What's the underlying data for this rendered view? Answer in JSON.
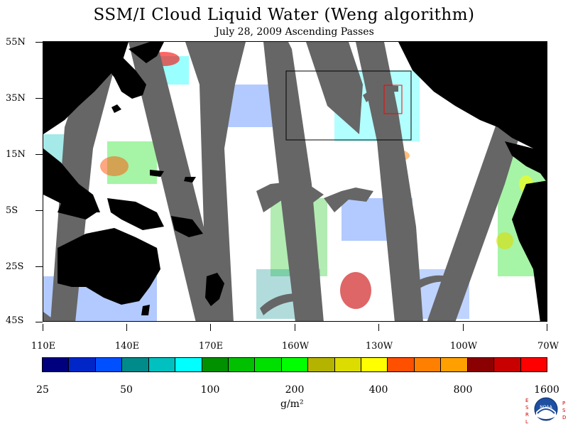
{
  "title": "SSM/I Cloud Liquid Water (Weng algorithm)",
  "subtitle": "July 28, 2009  Ascending Passes",
  "lat_labels": [
    "55N",
    "35N",
    "15N",
    "5S",
    "25S",
    "45S"
  ],
  "lon_labels": [
    "110E",
    "140E",
    "170E",
    "160W",
    "130W",
    "100W",
    "70W"
  ],
  "colorbar": {
    "colors": [
      "#00007f",
      "#0026c8",
      "#0050ff",
      "#008b8b",
      "#00c0c0",
      "#00ffff",
      "#009000",
      "#00c000",
      "#00e000",
      "#00ff00",
      "#b4b400",
      "#dcdc00",
      "#ffff00",
      "#ff5000",
      "#ff8000",
      "#ffa000",
      "#8b0000",
      "#c80000",
      "#ff0000"
    ],
    "labels": [
      "25",
      "50",
      "100",
      "200",
      "400",
      "800",
      "1600"
    ],
    "unit": "g/m²"
  },
  "logo": {
    "left_letters": "ESRL",
    "right_letters": "PSD",
    "center": "NOAA",
    "icon": "noaa-logo-icon"
  },
  "map_colors": {
    "land": "#000000",
    "no_data": "#666666",
    "clear": "#ffffff"
  }
}
